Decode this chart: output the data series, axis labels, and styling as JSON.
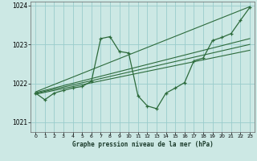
{
  "title": "Graphe pression niveau de la mer (hPa)",
  "bg_color": "#cce8e4",
  "grid_color": "#99cccc",
  "line_color": "#2d6b3c",
  "xlim": [
    -0.5,
    23.5
  ],
  "ylim": [
    1020.75,
    1024.1
  ],
  "yticks": [
    1021,
    1022,
    1023,
    1024
  ],
  "xticks": [
    0,
    1,
    2,
    3,
    4,
    5,
    6,
    7,
    8,
    9,
    10,
    11,
    12,
    13,
    14,
    15,
    16,
    17,
    18,
    19,
    20,
    21,
    22,
    23
  ],
  "trend1_x": [
    0,
    23
  ],
  "trend1_y": [
    1021.72,
    1022.85
  ],
  "trend2_x": [
    0,
    23
  ],
  "trend2_y": [
    1021.74,
    1023.0
  ],
  "trend3_x": [
    0,
    23
  ],
  "trend3_y": [
    1021.76,
    1023.15
  ],
  "trend4_x": [
    0,
    23
  ],
  "trend4_y": [
    1021.78,
    1023.97
  ],
  "main_x": [
    0,
    1,
    2,
    3,
    4,
    5,
    6,
    7,
    8,
    9,
    10,
    11,
    12,
    13,
    14,
    15,
    16,
    17,
    18,
    19,
    20,
    21,
    22,
    23
  ],
  "main_y": [
    1021.75,
    1021.58,
    1021.75,
    1021.82,
    1021.88,
    1021.92,
    1022.05,
    1023.15,
    1023.2,
    1022.82,
    1022.78,
    1021.68,
    1021.42,
    1021.35,
    1021.75,
    1021.88,
    1022.02,
    1022.58,
    1022.65,
    1023.1,
    1023.18,
    1023.28,
    1023.62,
    1023.95
  ]
}
